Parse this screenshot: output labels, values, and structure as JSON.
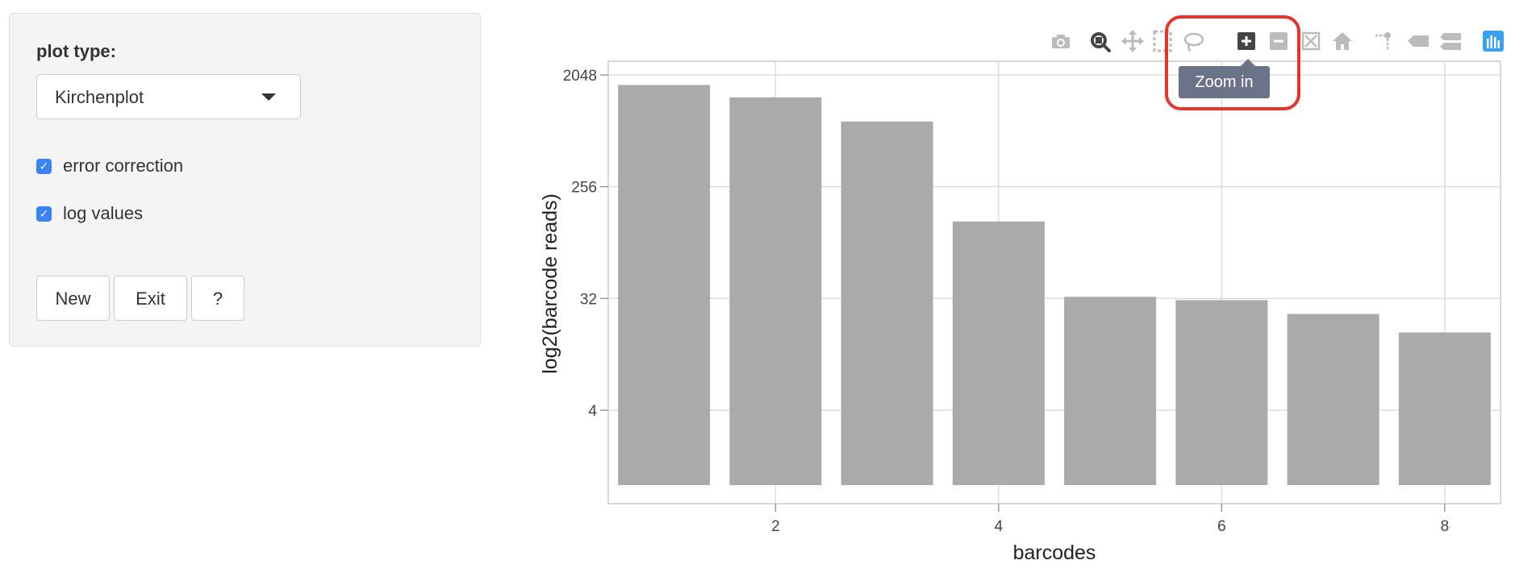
{
  "controls": {
    "plot_type_label": "plot type:",
    "plot_type_value": "Kirchenplot",
    "checkboxes": [
      {
        "label": "error correction",
        "checked": true
      },
      {
        "label": "log values",
        "checked": true
      }
    ],
    "buttons": {
      "new": "New",
      "exit": "Exit",
      "help": "?"
    }
  },
  "modebar": {
    "icons": [
      "camera-icon",
      "zoom-icon",
      "pan-icon",
      "box-select-icon",
      "lasso-select-icon",
      "zoom-in-icon",
      "zoom-out-icon",
      "autoscale-icon",
      "reset-axes-icon",
      "spike-lines-icon",
      "hover-closest-icon",
      "hover-compare-icon",
      "plotly-logo-icon"
    ],
    "tooltip": "Zoom in"
  },
  "colors": {
    "bar": "#aaaaaa",
    "highlight": "#e8332a",
    "checkbox": "#3b82f6",
    "tooltip_bg": "#6b7388",
    "grid": "#dddddd"
  },
  "chart_data": {
    "type": "bar",
    "x": [
      1,
      2,
      3,
      4,
      5,
      6,
      7,
      8
    ],
    "values": [
      1700,
      1350,
      860,
      134,
      33,
      31,
      24,
      17
    ],
    "xlabel": "barcodes",
    "ylabel": "log2(barcode reads)",
    "y_scale": "log2",
    "yticks": [
      4,
      32,
      256,
      2048
    ],
    "xticks": [
      2,
      4,
      6,
      8
    ],
    "xlim": [
      0.5,
      8.5
    ],
    "grid": true,
    "legend": false
  }
}
